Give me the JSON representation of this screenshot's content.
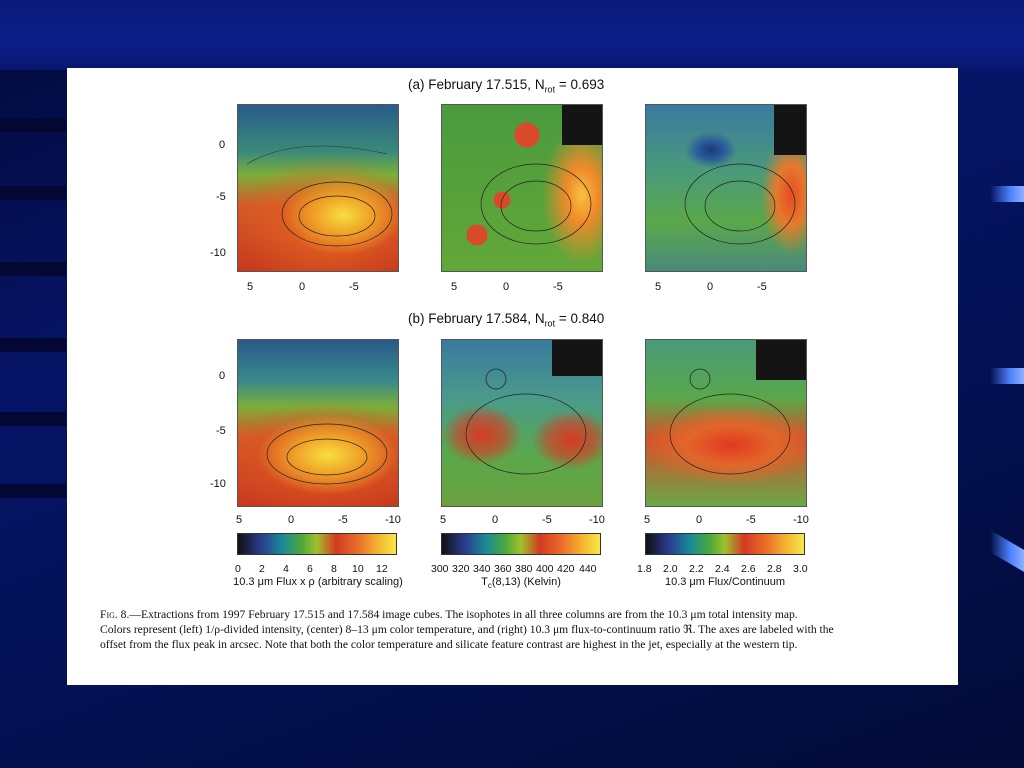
{
  "panels": [
    {
      "prefix": "(a) February 17.515, N",
      "sub": "rot",
      "suffix": " = 0.693"
    },
    {
      "prefix": "(b) February 17.584, N",
      "sub": "rot",
      "suffix": " = 0.840"
    }
  ],
  "y_ticks": [
    "0",
    "-5",
    "-10"
  ],
  "x_ticks_a": [
    "5",
    "0",
    "-5"
  ],
  "x_ticks_b": [
    "5",
    "0",
    "-5",
    "-10"
  ],
  "colorbars": [
    {
      "ticks": [
        "0",
        "2",
        "4",
        "6",
        "8",
        "10",
        "12"
      ],
      "label_pre": "10.3 μm Flux x ρ (arbitrary scaling)",
      "label_sub": "",
      "label_post": ""
    },
    {
      "ticks": [
        "300",
        "320",
        "340",
        "360",
        "380",
        "400",
        "420",
        "440"
      ],
      "label_pre": "T",
      "label_sub": "c",
      "label_post": "(8,13) (Kelvin)"
    },
    {
      "ticks": [
        "1.8",
        "2.0",
        "2.2",
        "2.4",
        "2.6",
        "2.8",
        "3.0"
      ],
      "label_pre": "10.3 μm Flux/Continuum",
      "label_sub": "",
      "label_post": ""
    }
  ],
  "caption": {
    "fig_label": "Fig. 8.",
    "lines": [
      "—Extractions from 1997 February 17.515 and 17.584 image cubes. The isophotes in all three columns are from the 10.3 μm total intensity map.",
      "Colors represent (left) 1/ρ-divided intensity, (center) 8–13 μm color temperature, and (right) 10.3 μm flux-to-continuum ratio ℜ. The axes are labeled with the",
      "offset from the flux peak in arcsec. Note that both the color temperature and silicate feature contrast are highest in the jet, especially at the western tip."
    ]
  },
  "colors": {
    "slide_bg": "#061468",
    "card": "#ffffff",
    "side_mark": "#4d82ff"
  }
}
